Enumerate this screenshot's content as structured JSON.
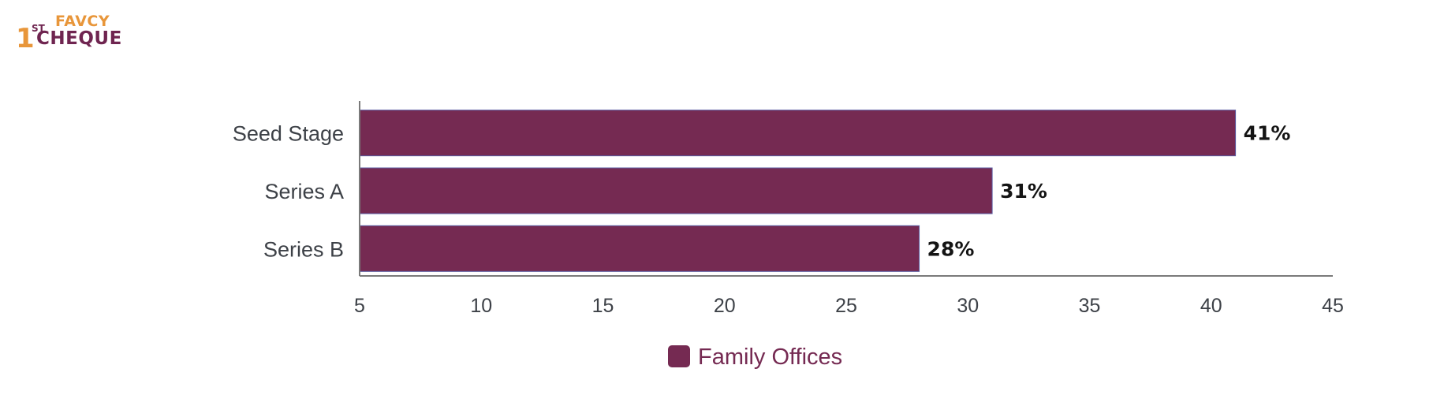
{
  "logo": {
    "number": "1",
    "superscript": "ST",
    "word1": "FAVCY",
    "word2": "CHEQUE",
    "color_orange": "#e8963a",
    "color_purple": "#6f2550"
  },
  "chart_data": {
    "type": "bar",
    "orientation": "horizontal",
    "title": "",
    "xlabel": "",
    "ylabel": "",
    "categories": [
      "Seed Stage",
      "Series A",
      "Series B"
    ],
    "series": [
      {
        "name": "Family Offices",
        "values": [
          41,
          31,
          28
        ],
        "data_labels": [
          "41%",
          "31%",
          "28%"
        ],
        "color": "#752a52"
      }
    ],
    "xlim": [
      5,
      45
    ],
    "xticks": [
      5,
      10,
      15,
      20,
      25,
      30,
      35,
      40,
      45
    ],
    "xtick_labels": [
      "5",
      "10",
      "15",
      "20",
      "25",
      "30",
      "35",
      "40",
      "45"
    ],
    "grid": false,
    "legend": {
      "placement": "bottom-center",
      "label_color": "#752a52"
    },
    "axis_color": "#7a7a7a",
    "bar_edge_color": "#5a5aa0"
  }
}
